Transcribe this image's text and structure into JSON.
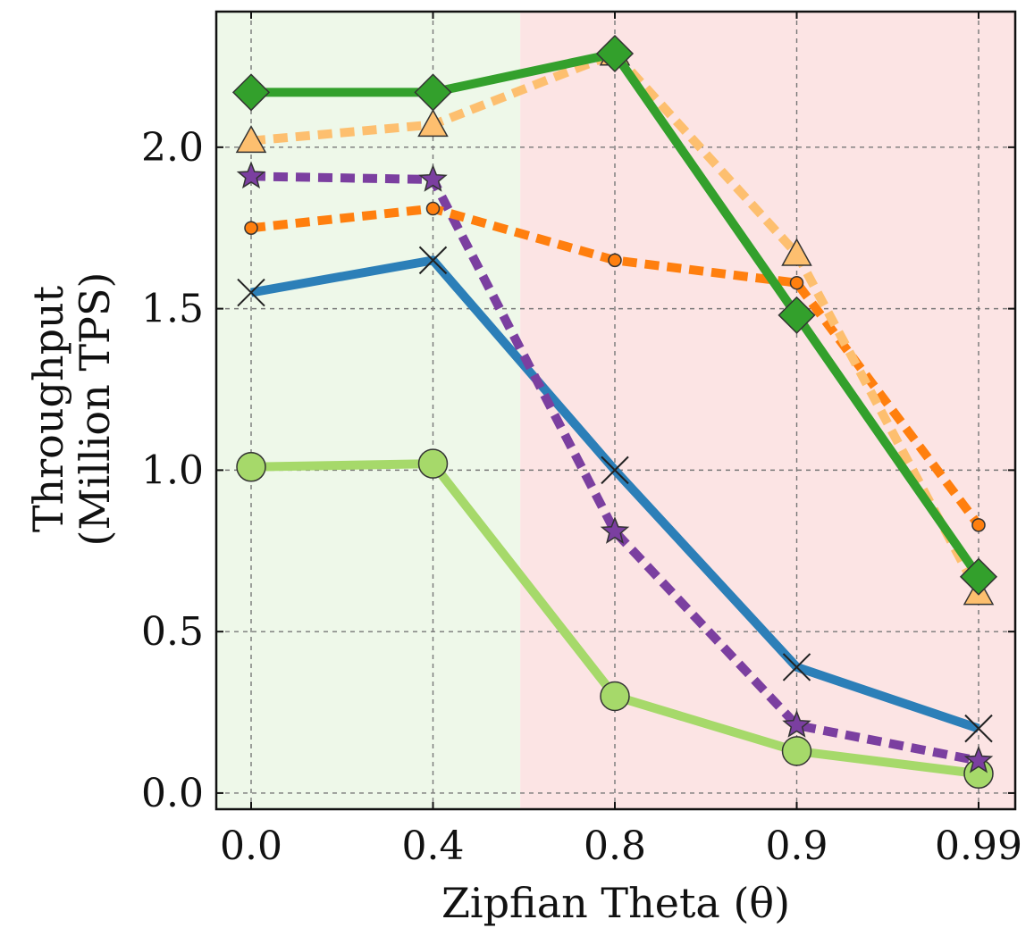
{
  "chart_data": {
    "type": "line",
    "xlabel": "Zipfian Theta (θ)",
    "ylabel_line1": "Throughput",
    "ylabel_line2": "(Million TPS)",
    "categories": [
      "0.0",
      "0.4",
      "0.8",
      "0.9",
      "0.99"
    ],
    "yticks": [
      "0.0",
      "0.5",
      "1.0",
      "1.5",
      "2.0"
    ],
    "ylim": [
      -0.05,
      2.42
    ],
    "grid": true,
    "background_regions": [
      {
        "from_category_index": -0.19,
        "to_category_index": 1.48,
        "color": "#eef8e9"
      },
      {
        "from_category_index": 1.48,
        "to_category_index": 4.2,
        "color": "#fce4e4"
      }
    ],
    "series": [
      {
        "values": [
          1.01,
          1.02,
          0.3,
          0.13,
          0.06
        ],
        "color": "#a6d96a",
        "dash": "solid",
        "marker": "circle"
      },
      {
        "values": [
          1.55,
          1.65,
          1.0,
          0.39,
          0.2
        ],
        "color": "#2c7fb8",
        "dash": "solid",
        "marker": "x"
      },
      {
        "values": [
          1.91,
          1.9,
          0.81,
          0.21,
          0.1
        ],
        "color": "#7b3fa0",
        "dash": "dashed",
        "marker": "star"
      },
      {
        "values": [
          1.75,
          1.81,
          1.65,
          1.58,
          0.83
        ],
        "color": "#ff7f0e",
        "dash": "dashed",
        "marker": "small-circle"
      },
      {
        "values": [
          2.02,
          2.07,
          2.29,
          1.67,
          0.62
        ],
        "color": "#fdbf6f",
        "dash": "dashed",
        "marker": "triangle"
      },
      {
        "values": [
          2.17,
          2.17,
          2.29,
          1.48,
          0.67
        ],
        "color": "#33a02c",
        "dash": "solid",
        "marker": "diamond"
      }
    ]
  }
}
